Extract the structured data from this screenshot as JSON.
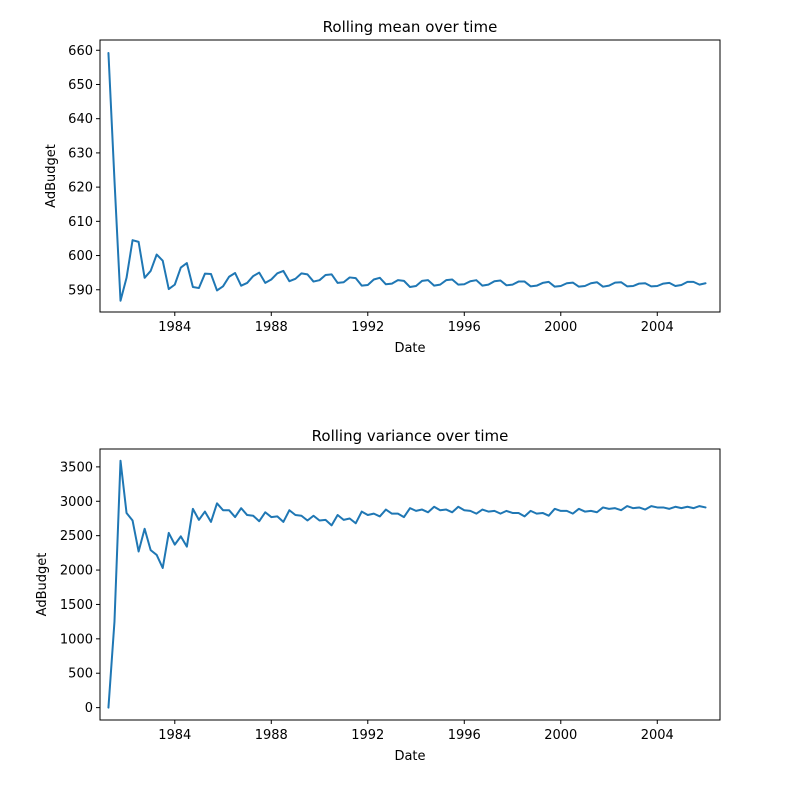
{
  "chart_data": [
    {
      "type": "line",
      "title": "Rolling mean over time",
      "xlabel": "Date",
      "ylabel": "AdBudget",
      "xlim": [
        1980.9,
        2006.6
      ],
      "ylim": [
        583.5,
        663.0
      ],
      "xticks": [
        1984,
        1988,
        1992,
        1996,
        2000,
        2004
      ],
      "yticks": [
        590,
        600,
        610,
        620,
        630,
        640,
        650,
        660
      ],
      "color": "#1f77b4",
      "series": [
        {
          "x": [
            1981.25,
            1981.5,
            1981.75,
            1982,
            1982.25,
            1982.5,
            1982.75,
            1983,
            1983.25,
            1983.5,
            1983.75,
            1984,
            1984.25,
            1984.5,
            1984.75,
            1985,
            1985.25,
            1985.5,
            1985.75,
            1986,
            1986.25,
            1986.5,
            1986.75,
            1987,
            1987.25,
            1987.5,
            1987.75,
            1988,
            1988.25,
            1988.5,
            1988.75,
            1989,
            1989.25,
            1989.5,
            1989.75,
            1990,
            1990.25,
            1990.5,
            1990.75,
            1991,
            1991.25,
            1991.5,
            1991.75,
            1992,
            1992.25,
            1992.5,
            1992.75,
            1993,
            1993.25,
            1993.5,
            1993.75,
            1994,
            1994.25,
            1994.5,
            1994.75,
            1995,
            1995.25,
            1995.5,
            1995.75,
            1996,
            1996.25,
            1996.5,
            1996.75,
            1997,
            1997.25,
            1997.5,
            1997.75,
            1998,
            1998.25,
            1998.5,
            1998.75,
            1999,
            1999.25,
            1999.5,
            1999.75,
            2000,
            2000.25,
            2000.5,
            2000.75,
            2001,
            2001.25,
            2001.5,
            2001.75,
            2002,
            2002.25,
            2002.5,
            2002.75,
            2003,
            2003.25,
            2003.5,
            2003.75,
            2004,
            2004.25,
            2004.5,
            2004.75,
            2005,
            2005.25,
            2005.5,
            2005.75,
            2006
          ],
          "values": [
            659.2,
            622.0,
            586.8,
            593.5,
            604.5,
            604.0,
            593.5,
            595.5,
            600.3,
            598.5,
            590.2,
            591.5,
            596.5,
            597.8,
            590.8,
            590.5,
            594.7,
            594.6,
            589.8,
            591.0,
            593.8,
            594.9,
            591.2,
            592.0,
            594.0,
            595.0,
            592.0,
            593.0,
            594.8,
            595.5,
            592.5,
            593.2,
            594.8,
            594.5,
            592.4,
            592.8,
            594.3,
            594.5,
            592.0,
            592.2,
            593.6,
            593.4,
            591.2,
            591.4,
            593.0,
            593.5,
            591.6,
            591.8,
            592.8,
            592.6,
            590.8,
            591.1,
            592.6,
            592.8,
            591.2,
            591.5,
            592.8,
            593.0,
            591.5,
            591.6,
            592.5,
            592.8,
            591.2,
            591.5,
            592.5,
            592.7,
            591.3,
            591.5,
            592.4,
            592.4,
            591.0,
            591.2,
            592.0,
            592.3,
            590.9,
            591.1,
            591.9,
            592.1,
            590.9,
            591.1,
            591.9,
            592.2,
            590.9,
            591.2,
            592.1,
            592.2,
            591.0,
            591.1,
            591.8,
            591.9,
            591.0,
            591.1,
            591.8,
            592.0,
            591.1,
            591.4,
            592.3,
            592.3,
            591.5,
            591.9
          ]
        }
      ]
    },
    {
      "type": "line",
      "title": "Rolling variance over time",
      "xlabel": "Date",
      "ylabel": "AdBudget",
      "xlim": [
        1980.9,
        2006.6
      ],
      "ylim": [
        -180,
        3760
      ],
      "xticks": [
        1984,
        1988,
        1992,
        1996,
        2000,
        2004
      ],
      "yticks": [
        0,
        500,
        1000,
        1500,
        2000,
        2500,
        3000,
        3500
      ],
      "color": "#1f77b4",
      "series": [
        {
          "x": [
            1981.25,
            1981.5,
            1981.75,
            1982,
            1982.25,
            1982.5,
            1982.75,
            1983,
            1983.25,
            1983.5,
            1983.75,
            1984,
            1984.25,
            1984.5,
            1984.75,
            1985,
            1985.25,
            1985.5,
            1985.75,
            1986,
            1986.25,
            1986.5,
            1986.75,
            1987,
            1987.25,
            1987.5,
            1987.75,
            1988,
            1988.25,
            1988.5,
            1988.75,
            1989,
            1989.25,
            1989.5,
            1989.75,
            1990,
            1990.25,
            1990.5,
            1990.75,
            1991,
            1991.25,
            1991.5,
            1991.75,
            1992,
            1992.25,
            1992.5,
            1992.75,
            1993,
            1993.25,
            1993.5,
            1993.75,
            1994,
            1994.25,
            1994.5,
            1994.75,
            1995,
            1995.25,
            1995.5,
            1995.75,
            1996,
            1996.25,
            1996.5,
            1996.75,
            1997,
            1997.25,
            1997.5,
            1997.75,
            1998,
            1998.25,
            1998.5,
            1998.75,
            1999,
            1999.25,
            1999.5,
            1999.75,
            2000,
            2000.25,
            2000.5,
            2000.75,
            2001,
            2001.25,
            2001.5,
            2001.75,
            2002,
            2002.25,
            2002.5,
            2002.75,
            2003,
            2003.25,
            2003.5,
            2003.75,
            2004,
            2004.25,
            2004.5,
            2004.75,
            2005,
            2005.25,
            2005.5,
            2005.75,
            2006
          ],
          "values": [
            0,
            1250,
            3590,
            2830,
            2720,
            2270,
            2600,
            2290,
            2220,
            2030,
            2540,
            2370,
            2490,
            2340,
            2890,
            2730,
            2850,
            2700,
            2970,
            2870,
            2870,
            2770,
            2900,
            2800,
            2790,
            2710,
            2840,
            2770,
            2780,
            2700,
            2870,
            2800,
            2790,
            2720,
            2790,
            2720,
            2730,
            2650,
            2800,
            2730,
            2750,
            2680,
            2850,
            2800,
            2820,
            2780,
            2880,
            2820,
            2820,
            2770,
            2900,
            2860,
            2880,
            2840,
            2920,
            2870,
            2880,
            2840,
            2920,
            2870,
            2860,
            2820,
            2880,
            2850,
            2860,
            2820,
            2860,
            2830,
            2830,
            2780,
            2860,
            2820,
            2830,
            2790,
            2890,
            2860,
            2860,
            2820,
            2890,
            2850,
            2860,
            2840,
            2910,
            2890,
            2900,
            2870,
            2930,
            2900,
            2910,
            2880,
            2930,
            2910,
            2910,
            2890,
            2920,
            2900,
            2920,
            2900,
            2930,
            2910
          ]
        }
      ]
    }
  ]
}
